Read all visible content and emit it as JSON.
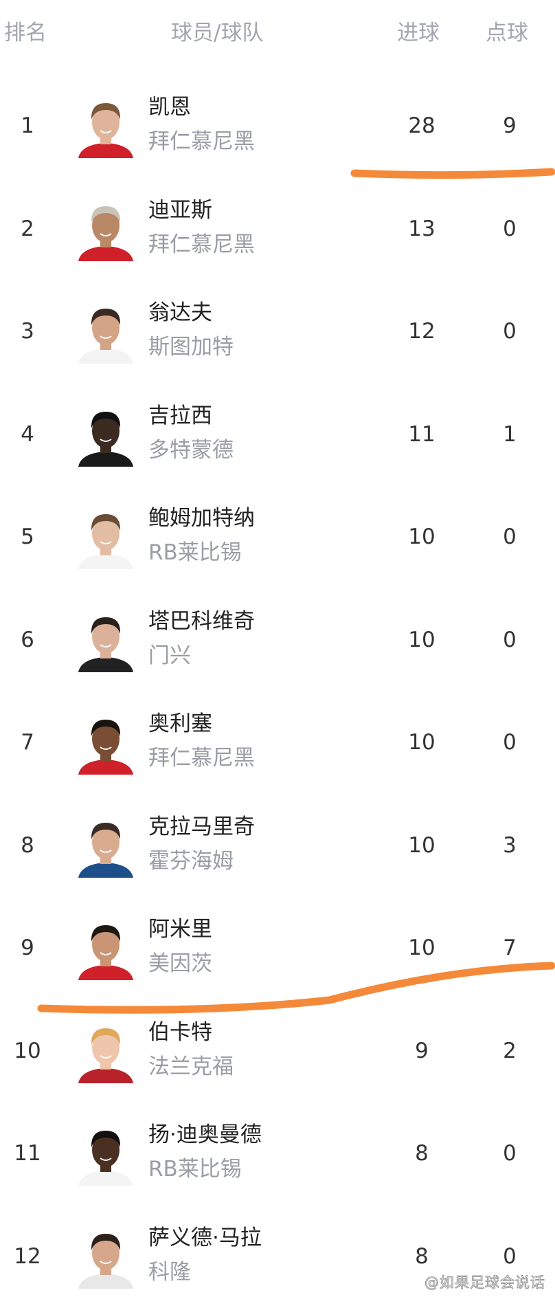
{
  "header": {
    "rank": "排名",
    "player_team": "球员/球队",
    "goals": "进球",
    "penalties": "点球"
  },
  "rows": [
    {
      "rank": "1",
      "name": "凯恩",
      "team": "拜仁慕尼黑",
      "goals": "28",
      "penalties": "9",
      "skin": "#e0b49a",
      "hair": "#7a5a3a",
      "shirt": "#d0202a"
    },
    {
      "rank": "2",
      "name": "迪亚斯",
      "team": "拜仁慕尼黑",
      "goals": "13",
      "penalties": "0",
      "skin": "#b98866",
      "hair": "#c9c2b8",
      "shirt": "#d0202a"
    },
    {
      "rank": "3",
      "name": "翁达夫",
      "team": "斯图加特",
      "goals": "12",
      "penalties": "0",
      "skin": "#d4a487",
      "hair": "#3a2a22",
      "shirt": "#f3f3f3"
    },
    {
      "rank": "4",
      "name": "吉拉西",
      "team": "多特蒙德",
      "goals": "11",
      "penalties": "1",
      "skin": "#3b2a20",
      "hair": "#111111",
      "shirt": "#1a1a1a"
    },
    {
      "rank": "5",
      "name": "鲍姆加特纳",
      "team": "RB莱比锡",
      "goals": "10",
      "penalties": "0",
      "skin": "#e3bca4",
      "hair": "#6a4d36",
      "shirt": "#f4f4f4"
    },
    {
      "rank": "6",
      "name": "塔巴科维奇",
      "team": "门兴",
      "goals": "10",
      "penalties": "0",
      "skin": "#dcb199",
      "hair": "#2a211c",
      "shirt": "#222222"
    },
    {
      "rank": "7",
      "name": "奥利塞",
      "team": "拜仁慕尼黑",
      "goals": "10",
      "penalties": "0",
      "skin": "#7a4e34",
      "hair": "#1a1410",
      "shirt": "#d0202a"
    },
    {
      "rank": "8",
      "name": "克拉马里奇",
      "team": "霍芬海姆",
      "goals": "10",
      "penalties": "3",
      "skin": "#d9ac90",
      "hair": "#3a2c24",
      "shirt": "#1d4f8a"
    },
    {
      "rank": "9",
      "name": "阿米里",
      "team": "美因茨",
      "goals": "10",
      "penalties": "7",
      "skin": "#c99575",
      "hair": "#1e1712",
      "shirt": "#d0202a"
    },
    {
      "rank": "10",
      "name": "伯卡特",
      "team": "法兰克福",
      "goals": "9",
      "penalties": "2",
      "skin": "#efc6ac",
      "hair": "#e0a85a",
      "shirt": "#b8222a"
    },
    {
      "rank": "11",
      "name": "扬·迪奥曼德",
      "team": "RB莱比锡",
      "goals": "8",
      "penalties": "0",
      "skin": "#4a3022",
      "hair": "#141010",
      "shirt": "#f4f4f4"
    },
    {
      "rank": "12",
      "name": "萨义德·马拉",
      "team": "科隆",
      "goals": "8",
      "penalties": "0",
      "skin": "#d6a78a",
      "hair": "#2c211a",
      "shirt": "#e8e8e8"
    }
  ],
  "highlight_color": "#f5893a",
  "watermark": "@如果足球会说话"
}
